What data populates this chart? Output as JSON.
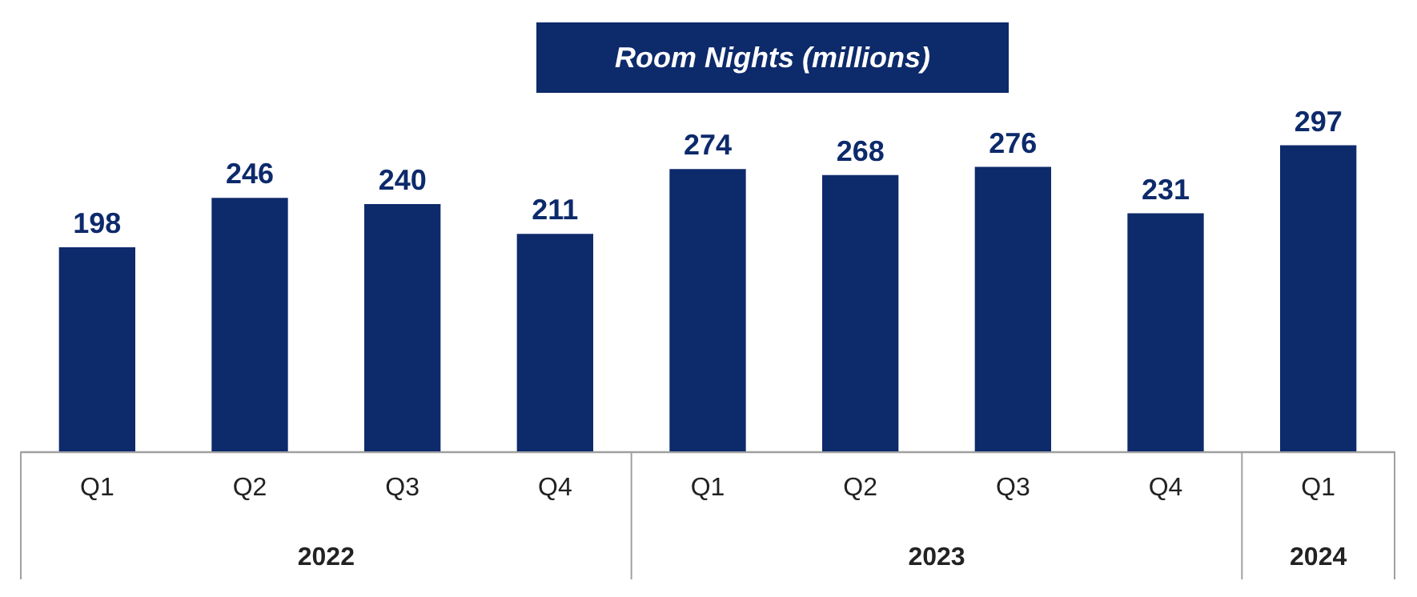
{
  "chart_data": {
    "type": "bar",
    "title": "Room Nights (millions)",
    "categories": [
      "Q1",
      "Q2",
      "Q3",
      "Q4",
      "Q1",
      "Q2",
      "Q3",
      "Q4",
      "Q1"
    ],
    "values": [
      198,
      246,
      240,
      211,
      274,
      268,
      276,
      231,
      297
    ],
    "color": "#0d2a6b",
    "data_labels": true,
    "annotations": [
      "2022",
      "2023",
      "2024"
    ]
  }
}
